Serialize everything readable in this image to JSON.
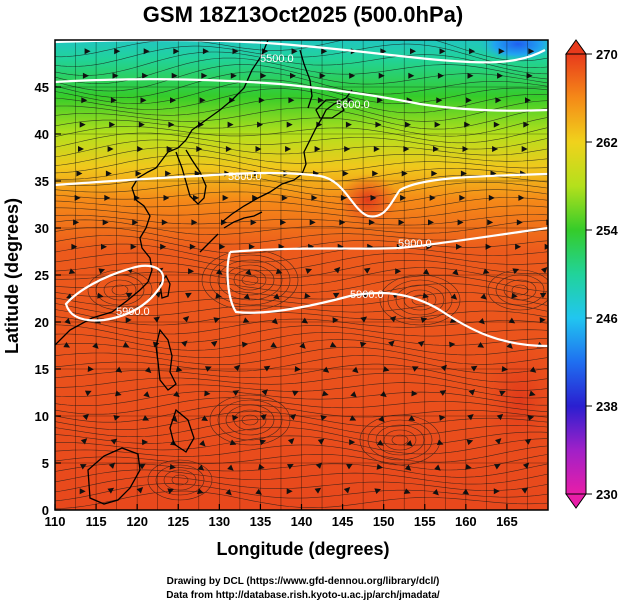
{
  "title": "GSM 18Z13Oct2025 (500.0hPa)",
  "x_axis": {
    "label": "Longitude (degrees)",
    "range": [
      110,
      170
    ],
    "ticks": [
      "110",
      "115",
      "120",
      "125",
      "130",
      "135",
      "140",
      "145",
      "150",
      "155",
      "160",
      "165"
    ]
  },
  "y_axis": {
    "label": "Latitude  (degrees)",
    "range": [
      0,
      50
    ],
    "ticks": [
      "0",
      "5",
      "10",
      "15",
      "20",
      "25",
      "30",
      "35",
      "40",
      "45"
    ]
  },
  "colorbar": {
    "range": [
      230,
      270
    ],
    "ticks": [
      "270",
      "262",
      "254",
      "246",
      "238",
      "230"
    ],
    "stops": [
      {
        "value": 230,
        "color": "#e81ea8"
      },
      {
        "value": 234,
        "color": "#a020c8"
      },
      {
        "value": 238,
        "color": "#2a1fd0"
      },
      {
        "value": 242,
        "color": "#1f6ff0"
      },
      {
        "value": 246,
        "color": "#21c6f0"
      },
      {
        "value": 250,
        "color": "#21d39a"
      },
      {
        "value": 254,
        "color": "#35cc2a"
      },
      {
        "value": 258,
        "color": "#b4e01c"
      },
      {
        "value": 262,
        "color": "#f0d21c"
      },
      {
        "value": 266,
        "color": "#f58a18"
      },
      {
        "value": 270,
        "color": "#e83a1c"
      }
    ]
  },
  "contour_labels": [
    "5500.0",
    "5600.0",
    "5800.0",
    "5900.0",
    "5900.0",
    "5900.0"
  ],
  "credits": {
    "line1": "Drawing by DCL (https://www.gfd-dennou.org/library/dcl/)",
    "line2": "Data from http://database.rish.kyoto-u.ac.jp/arch/jmadata/"
  },
  "colors": {
    "contour": "#ffffff",
    "coastline": "#000000",
    "background_warm": "#e8481c"
  }
}
